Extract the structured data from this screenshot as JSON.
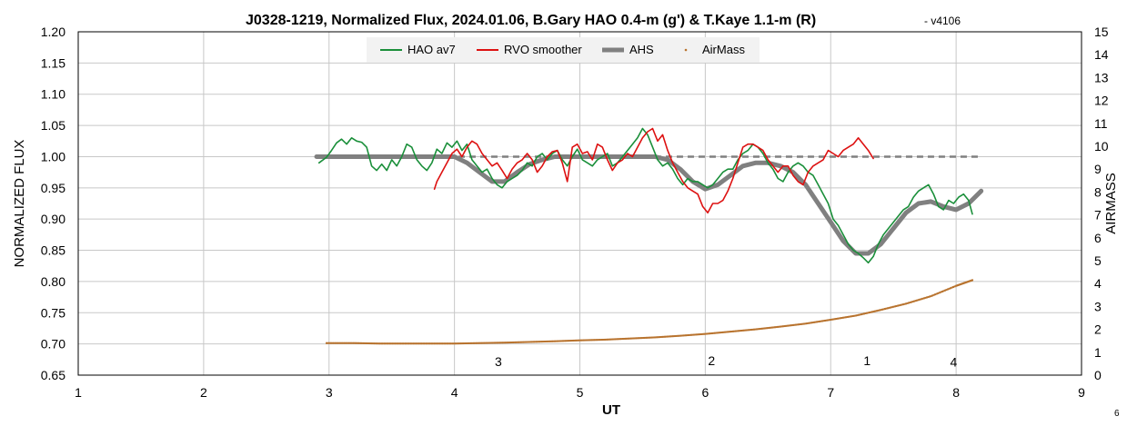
{
  "chart_data": {
    "type": "line",
    "title": "J0328-1219, Normalized Flux, 2024.01.06, B.Gary HAO 0.4-m (g') & T.Kaye 1.1-m (R)",
    "title_suffix": "- v4106",
    "xlabel": "UT",
    "ylabel": "NORMALIZED FLUX",
    "y2label": "AIRMASS",
    "xlim": [
      1,
      9
    ],
    "ylim": [
      0.65,
      1.2
    ],
    "y2lim": [
      0,
      15
    ],
    "x_ticks": [
      "1",
      "2",
      "3",
      "4",
      "5",
      "6",
      "7",
      "8",
      "9"
    ],
    "y_ticks": [
      "0.65",
      "0.70",
      "0.75",
      "0.80",
      "0.85",
      "0.90",
      "0.95",
      "1.00",
      "1.05",
      "1.10",
      "1.15",
      "1.20"
    ],
    "y2_ticks": [
      "0",
      "1",
      "2",
      "3",
      "4",
      "5",
      "6",
      "7",
      "8",
      "9",
      "10",
      "11",
      "12",
      "13",
      "14",
      "15"
    ],
    "grid": true,
    "legend_position": "top-center",
    "reference_line": {
      "y": 1.0,
      "x_start": 2.9,
      "x_end": 8.2,
      "style": "dashed",
      "color": "#808080"
    },
    "series": [
      {
        "name": "HAO av7",
        "color": "#1a8f3a",
        "x": [
          2.92,
          2.98,
          3.02,
          3.06,
          3.1,
          3.14,
          3.18,
          3.22,
          3.26,
          3.3,
          3.34,
          3.38,
          3.42,
          3.46,
          3.5,
          3.54,
          3.58,
          3.62,
          3.66,
          3.7,
          3.74,
          3.78,
          3.82,
          3.86,
          3.9,
          3.94,
          3.98,
          4.02,
          4.06,
          4.1,
          4.14,
          4.18,
          4.22,
          4.26,
          4.3,
          4.34,
          4.38,
          4.42,
          4.46,
          4.5,
          4.54,
          4.58,
          4.62,
          4.66,
          4.7,
          4.74,
          4.78,
          4.82,
          4.86,
          4.9,
          4.94,
          4.98,
          5.02,
          5.06,
          5.1,
          5.14,
          5.18,
          5.22,
          5.26,
          5.3,
          5.34,
          5.38,
          5.42,
          5.46,
          5.5,
          5.54,
          5.58,
          5.62,
          5.66,
          5.7,
          5.74,
          5.78,
          5.82,
          5.86,
          5.9,
          5.94,
          5.98,
          6.02,
          6.06,
          6.1,
          6.14,
          6.18,
          6.22,
          6.26,
          6.3,
          6.34,
          6.38,
          6.42,
          6.46,
          6.5,
          6.54,
          6.58,
          6.62,
          6.66,
          6.7,
          6.74,
          6.78,
          6.82,
          6.86,
          6.9,
          6.94,
          6.98,
          7.02,
          7.06,
          7.1,
          7.14,
          7.18,
          7.22,
          7.26,
          7.3,
          7.34,
          7.38,
          7.42,
          7.46,
          7.5,
          7.54,
          7.58,
          7.62,
          7.66,
          7.7,
          7.74,
          7.78,
          7.82,
          7.86,
          7.9,
          7.94,
          7.98,
          8.02,
          8.06,
          8.1,
          8.13
        ],
        "values": [
          0.99,
          0.999,
          1.01,
          1.022,
          1.028,
          1.02,
          1.03,
          1.025,
          1.023,
          1.015,
          0.985,
          0.978,
          0.988,
          0.978,
          0.995,
          0.985,
          1.0,
          1.02,
          1.015,
          0.995,
          0.985,
          0.978,
          0.99,
          1.012,
          1.005,
          1.022,
          1.015,
          1.025,
          1.01,
          1.02,
          0.995,
          0.985,
          0.975,
          0.98,
          0.965,
          0.955,
          0.95,
          0.96,
          0.965,
          0.97,
          0.978,
          0.99,
          0.985,
          1.0,
          1.005,
          0.995,
          1.005,
          1.01,
          0.995,
          0.985,
          1.0,
          1.012,
          0.995,
          0.99,
          0.985,
          0.995,
          1.0,
          1.005,
          0.985,
          0.99,
          1.0,
          1.01,
          1.02,
          1.03,
          1.045,
          1.035,
          1.015,
          0.995,
          0.985,
          0.99,
          0.98,
          0.965,
          0.955,
          0.965,
          0.96,
          0.96,
          0.955,
          0.95,
          0.955,
          0.965,
          0.975,
          0.98,
          0.98,
          0.995,
          1.005,
          1.01,
          1.02,
          1.015,
          1.005,
          0.99,
          0.98,
          0.965,
          0.96,
          0.975,
          0.985,
          0.99,
          0.985,
          0.975,
          0.97,
          0.955,
          0.94,
          0.925,
          0.9,
          0.89,
          0.875,
          0.86,
          0.85,
          0.845,
          0.838,
          0.83,
          0.84,
          0.86,
          0.875,
          0.885,
          0.895,
          0.905,
          0.915,
          0.92,
          0.935,
          0.945,
          0.95,
          0.955,
          0.94,
          0.92,
          0.915,
          0.93,
          0.925,
          0.935,
          0.94,
          0.93,
          0.908
        ],
        "style": "line"
      },
      {
        "name": "RVO smoother",
        "color": "#dd1111",
        "x": [
          3.84,
          3.86,
          3.9,
          3.94,
          3.98,
          4.02,
          4.06,
          4.1,
          4.14,
          4.18,
          4.22,
          4.26,
          4.3,
          4.34,
          4.38,
          4.42,
          4.46,
          4.5,
          4.54,
          4.58,
          4.62,
          4.66,
          4.7,
          4.74,
          4.78,
          4.82,
          4.86,
          4.9,
          4.94,
          4.98,
          5.02,
          5.06,
          5.1,
          5.14,
          5.18,
          5.22,
          5.26,
          5.3,
          5.34,
          5.38,
          5.42,
          5.46,
          5.5,
          5.54,
          5.58,
          5.62,
          5.66,
          5.7,
          5.74,
          5.78,
          5.82,
          5.86,
          5.9,
          5.94,
          5.98,
          6.02,
          6.06,
          6.1,
          6.14,
          6.18,
          6.22,
          6.26,
          6.3,
          6.34,
          6.38,
          6.42,
          6.46,
          6.5,
          6.54,
          6.58,
          6.62,
          6.66,
          6.7,
          6.74,
          6.78,
          6.82,
          6.86,
          6.9,
          6.94,
          6.98,
          7.02,
          7.06,
          7.1,
          7.14,
          7.18,
          7.22,
          7.26,
          7.3,
          7.34
        ],
        "values": [
          0.948,
          0.96,
          0.975,
          0.99,
          1.005,
          1.012,
          1.0,
          1.015,
          1.025,
          1.02,
          1.005,
          0.995,
          0.985,
          0.99,
          0.978,
          0.965,
          0.98,
          0.99,
          0.995,
          1.005,
          0.995,
          0.975,
          0.985,
          1.0,
          1.008,
          1.01,
          0.99,
          0.96,
          1.015,
          1.02,
          1.005,
          1.008,
          0.995,
          1.02,
          1.015,
          0.995,
          0.978,
          0.99,
          0.995,
          1.005,
          1.0,
          1.015,
          1.03,
          1.04,
          1.045,
          1.025,
          1.035,
          1.01,
          0.99,
          0.975,
          0.96,
          0.95,
          0.945,
          0.94,
          0.92,
          0.91,
          0.925,
          0.925,
          0.93,
          0.945,
          0.965,
          0.99,
          1.015,
          1.02,
          1.02,
          1.015,
          1.01,
          0.995,
          0.985,
          0.975,
          0.985,
          0.985,
          0.97,
          0.96,
          0.955,
          0.975,
          0.985,
          0.99,
          0.995,
          1.01,
          1.005,
          1.0,
          1.01,
          1.015,
          1.02,
          1.03,
          1.02,
          1.01,
          0.997
        ],
        "style": "line"
      },
      {
        "name": "AHS",
        "color": "#808080",
        "x": [
          2.9,
          3.0,
          3.2,
          3.4,
          3.6,
          3.8,
          4.0,
          4.1,
          4.2,
          4.3,
          4.4,
          4.5,
          4.6,
          4.7,
          4.8,
          4.9,
          5.0,
          5.1,
          5.2,
          5.3,
          5.4,
          5.5,
          5.6,
          5.7,
          5.8,
          5.9,
          6.0,
          6.1,
          6.2,
          6.3,
          6.4,
          6.5,
          6.6,
          6.7,
          6.8,
          6.9,
          7.0,
          7.1,
          7.2,
          7.3,
          7.4,
          7.5,
          7.6,
          7.7,
          7.8,
          7.9,
          8.0,
          8.1,
          8.2
        ],
        "values": [
          1.0,
          1.0,
          1.0,
          1.0,
          1.0,
          1.0,
          1.0,
          0.99,
          0.975,
          0.96,
          0.96,
          0.975,
          0.988,
          0.995,
          1.0,
          1.0,
          1.0,
          1.0,
          1.0,
          1.0,
          1.0,
          1.0,
          1.0,
          0.995,
          0.98,
          0.96,
          0.948,
          0.955,
          0.97,
          0.985,
          0.99,
          0.99,
          0.985,
          0.975,
          0.955,
          0.925,
          0.895,
          0.865,
          0.845,
          0.845,
          0.86,
          0.885,
          0.91,
          0.925,
          0.928,
          0.92,
          0.915,
          0.925,
          0.945
        ],
        "style": "thick-line"
      },
      {
        "name": "AirMass",
        "color": "#b8732e",
        "axis": "right",
        "x": [
          2.98,
          3.2,
          3.4,
          3.6,
          3.8,
          4.0,
          4.2,
          4.4,
          4.6,
          4.8,
          5.0,
          5.2,
          5.4,
          5.6,
          5.8,
          6.0,
          6.2,
          6.4,
          6.6,
          6.8,
          7.0,
          7.2,
          7.4,
          7.6,
          7.8,
          8.0,
          8.13
        ],
        "values": [
          1.4,
          1.4,
          1.38,
          1.38,
          1.38,
          1.38,
          1.4,
          1.42,
          1.45,
          1.48,
          1.52,
          1.55,
          1.6,
          1.65,
          1.72,
          1.8,
          1.9,
          2.0,
          2.12,
          2.25,
          2.42,
          2.6,
          2.85,
          3.12,
          3.45,
          3.9,
          4.15
        ],
        "style": "dots"
      }
    ],
    "annotations": [
      {
        "text": "3",
        "x": 4.35,
        "y": 0.672
      },
      {
        "text": "2",
        "x": 6.05,
        "y": 0.673
      },
      {
        "text": "1",
        "x": 7.29,
        "y": 0.673
      },
      {
        "text": "4",
        "x": 7.98,
        "y": 0.671
      }
    ],
    "corner_label": "6"
  }
}
